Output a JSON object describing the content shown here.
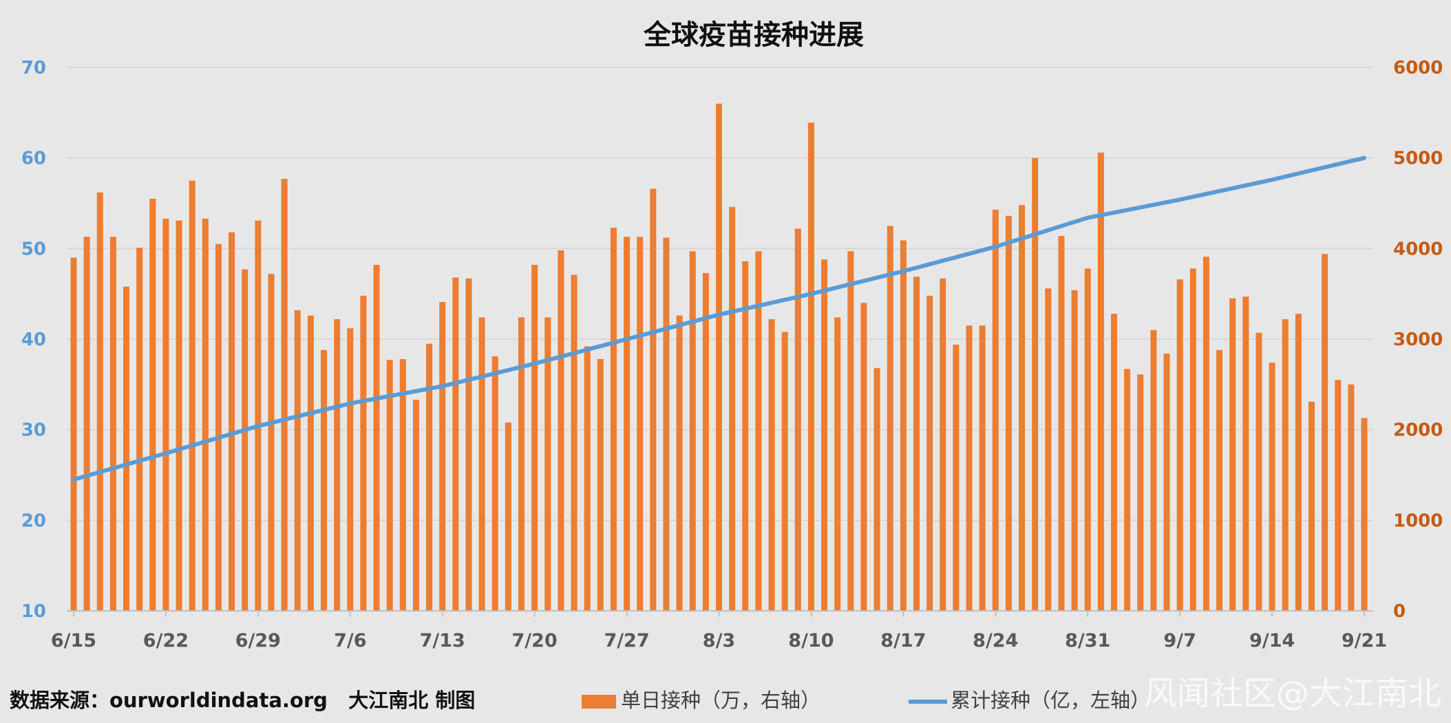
{
  "footer": {
    "source": "数据来源：ourworldindata.org   大江南北 制图",
    "watermark": "风闻社区@大江南北"
  },
  "chart_data": {
    "type": "bar+line",
    "title": "全球疫苗接种进展",
    "colors": {
      "bars": "#ed7d31",
      "line": "#5b9bd5",
      "left_axis": "#5b9bd5",
      "right_axis": "#c55a11"
    },
    "start_date": "6/15",
    "x_tick_labels": [
      "6/15",
      "6/22",
      "6/29",
      "7/6",
      "7/13",
      "7/20",
      "7/27",
      "8/3",
      "8/10",
      "8/17",
      "8/24",
      "8/31",
      "9/7",
      "9/14",
      "9/21"
    ],
    "left_axis": {
      "min": 10,
      "max": 70,
      "ticks": [
        10,
        20,
        30,
        40,
        50,
        60,
        70
      ]
    },
    "right_axis": {
      "min": 0,
      "max": 6000,
      "ticks": [
        0,
        1000,
        2000,
        3000,
        4000,
        5000,
        6000
      ]
    },
    "gridlines": true,
    "legend_position": "bottom",
    "series": [
      {
        "name": "单日接种（万，右轴）",
        "type": "bar",
        "axis": "right",
        "values": [
          3900,
          4130,
          4620,
          4130,
          3580,
          4010,
          4550,
          4330,
          4310,
          4750,
          4330,
          4050,
          4180,
          3770,
          4310,
          3720,
          4770,
          3320,
          3260,
          2880,
          3220,
          3120,
          3480,
          3820,
          2770,
          2780,
          2330,
          2950,
          3410,
          3680,
          3670,
          3240,
          2810,
          2080,
          3240,
          3820,
          3240,
          3980,
          3710,
          2920,
          2780,
          4230,
          4130,
          4130,
          4660,
          4120,
          3260,
          3970,
          3730,
          5600,
          4460,
          3860,
          3970,
          3220,
          3080,
          4220,
          5390,
          3880,
          3240,
          3970,
          3400,
          2680,
          4250,
          4090,
          3690,
          3480,
          3670,
          2940,
          3150,
          3150,
          4430,
          4360,
          4480,
          5000,
          3560,
          4140,
          3540,
          3780,
          5060,
          3280,
          2670,
          2610,
          3100,
          2840,
          3660,
          3780,
          3910,
          2880,
          3450,
          3470,
          3070,
          2740,
          3220,
          3280,
          2310,
          3940,
          2550,
          2500,
          2130
        ]
      },
      {
        "name": "累计接种（亿，左轴）",
        "type": "line",
        "axis": "left",
        "points": [
          [
            0,
            24.5
          ],
          [
            7,
            27.4
          ],
          [
            14,
            30.4
          ],
          [
            21,
            32.9
          ],
          [
            28,
            34.8
          ],
          [
            35,
            37.3
          ],
          [
            42,
            40.0
          ],
          [
            49,
            42.7
          ],
          [
            56,
            45.0
          ],
          [
            63,
            47.5
          ],
          [
            70,
            50.2
          ],
          [
            77,
            53.4
          ],
          [
            84,
            55.4
          ],
          [
            91,
            57.6
          ],
          [
            98,
            60.0
          ]
        ]
      }
    ]
  }
}
